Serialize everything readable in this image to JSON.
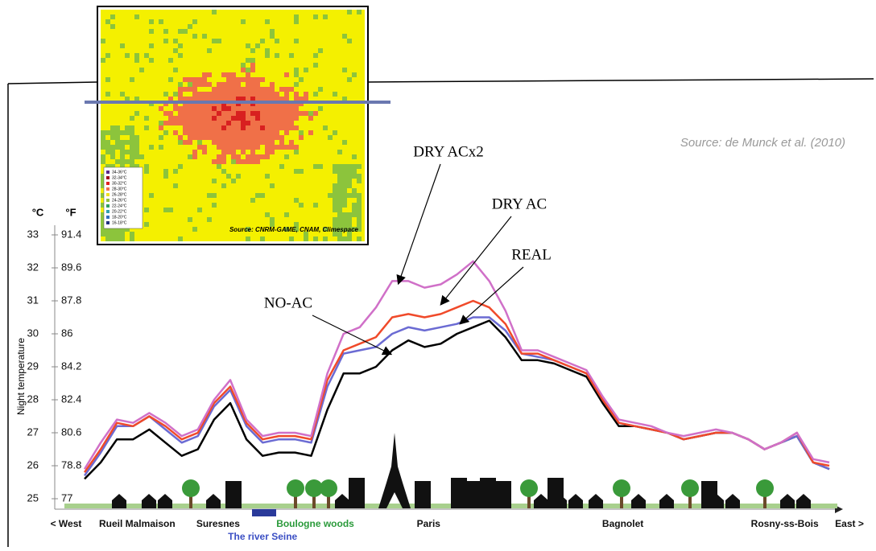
{
  "chart_data": {
    "type": "line",
    "source": "Source: de Munck et al. (2010)",
    "y_label": "Night temperature",
    "y_unit": "°C",
    "y2_unit": "°F",
    "west_label": "< West",
    "east_label": "East >",
    "categories": [
      null,
      null,
      null,
      "Rueil Malmaison",
      null,
      null,
      null,
      null,
      "Suresnes",
      null,
      null,
      "The river Seine",
      null,
      null,
      "Boulogne woods",
      null,
      null,
      null,
      null,
      null,
      null,
      "Paris",
      null,
      null,
      null,
      null,
      null,
      null,
      null,
      null,
      null,
      null,
      null,
      "Bagnolet",
      null,
      null,
      null,
      null,
      null,
      null,
      null,
      null,
      null,
      "Rosny-ss-Bois",
      null,
      null,
      null
    ],
    "ylim": [
      25,
      33
    ],
    "yticks": [
      25,
      26,
      27,
      28,
      29,
      30,
      31,
      32,
      33
    ],
    "y2lim": [
      77,
      91.4
    ],
    "y2ticks": [
      77,
      78.8,
      80.6,
      82.4,
      84.2,
      86,
      87.8,
      89.6,
      91.4
    ],
    "series": [
      {
        "name": "NO-AC",
        "color": "#000000",
        "values": [
          25.6,
          26.1,
          26.8,
          26.8,
          27.1,
          26.7,
          26.3,
          26.5,
          27.4,
          27.9,
          26.8,
          26.3,
          26.4,
          26.4,
          26.3,
          27.7,
          28.8,
          28.8,
          29.0,
          29.5,
          29.8,
          29.6,
          29.7,
          30.0,
          30.2,
          30.4,
          29.9,
          29.2,
          29.2,
          29.1,
          28.9,
          28.7,
          27.9,
          27.2,
          27.2,
          27.1,
          27.0,
          26.8,
          26.9,
          27.0,
          27.0,
          26.8,
          26.5,
          26.7,
          26.9,
          26.1,
          25.9
        ]
      },
      {
        "name": "REAL",
        "color": "#6b6bd3",
        "values": [
          25.7,
          26.4,
          27.2,
          27.2,
          27.5,
          27.1,
          26.7,
          26.9,
          27.8,
          28.3,
          27.2,
          26.7,
          26.8,
          26.8,
          26.7,
          28.4,
          29.4,
          29.5,
          29.6,
          30.0,
          30.2,
          30.1,
          30.2,
          30.3,
          30.5,
          30.5,
          30.1,
          29.4,
          29.3,
          29.2,
          29.0,
          28.8,
          28.0,
          27.3,
          27.2,
          27.1,
          27.0,
          26.8,
          26.9,
          27.0,
          27.0,
          26.8,
          26.5,
          26.7,
          26.9,
          26.1,
          25.9
        ]
      },
      {
        "name": "DRY AC",
        "color": "#f04a2a",
        "values": [
          25.8,
          26.5,
          27.3,
          27.2,
          27.5,
          27.2,
          26.8,
          27.0,
          27.9,
          28.4,
          27.3,
          26.8,
          26.9,
          26.9,
          26.8,
          28.6,
          29.5,
          29.7,
          29.9,
          30.5,
          30.6,
          30.5,
          30.6,
          30.8,
          31.0,
          30.8,
          30.3,
          29.4,
          29.4,
          29.2,
          29.0,
          28.8,
          28.0,
          27.3,
          27.2,
          27.1,
          27.0,
          26.8,
          26.9,
          27.0,
          27.0,
          26.8,
          26.5,
          26.7,
          27.0,
          26.1,
          26.0
        ]
      },
      {
        "name": "DRY ACx2",
        "color": "#d070c8",
        "values": [
          25.9,
          26.7,
          27.4,
          27.3,
          27.6,
          27.3,
          26.9,
          27.1,
          28.0,
          28.6,
          27.4,
          26.9,
          27.0,
          27.0,
          26.9,
          28.8,
          30.0,
          30.2,
          30.8,
          31.6,
          31.6,
          31.4,
          31.5,
          31.8,
          32.2,
          31.6,
          30.7,
          29.5,
          29.5,
          29.3,
          29.1,
          28.9,
          28.1,
          27.4,
          27.3,
          27.2,
          27.0,
          26.9,
          27.0,
          27.1,
          27.0,
          26.8,
          26.5,
          26.7,
          27.0,
          26.2,
          26.1
        ]
      }
    ],
    "map": {
      "source": "Source: CNRM-GAME, CNAM, Climespace",
      "legend": [
        {
          "label": "34-36°C",
          "color": "#5a2a8a"
        },
        {
          "label": "32-34°C",
          "color": "#a01020"
        },
        {
          "label": "30-32°C",
          "color": "#e02020"
        },
        {
          "label": "28-30°C",
          "color": "#f07050"
        },
        {
          "label": "26-28°C",
          "color": "#f0e020"
        },
        {
          "label": "24-26°C",
          "color": "#90c040"
        },
        {
          "label": "22-24°C",
          "color": "#30a060"
        },
        {
          "label": "20-22°C",
          "color": "#30a0b0"
        },
        {
          "label": "18-20°C",
          "color": "#3070c0"
        },
        {
          "label": "16-18°C",
          "color": "#203080"
        }
      ]
    }
  }
}
